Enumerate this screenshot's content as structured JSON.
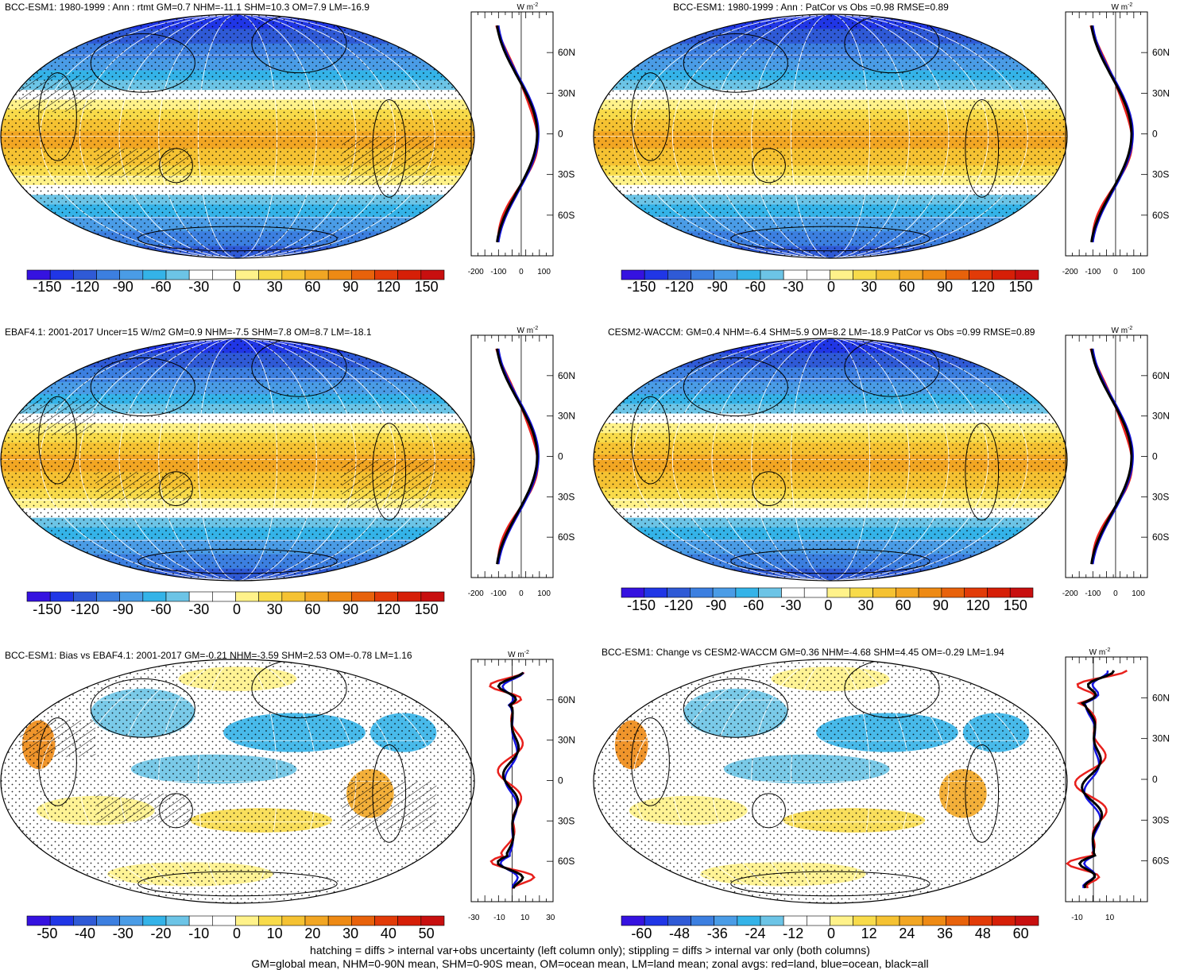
{
  "panels": [
    {
      "title": "BCC-ESM1: 1980-1999 : Ann : rtmt GM=0.7 NHM=-11.1 SHM=10.3 OM=7.9 LM=-16.9",
      "kind": "climatology",
      "colorbar": {
        "labels": [
          "-150",
          "-120",
          "-90",
          "-60",
          "-30",
          "0",
          "30",
          "60",
          "90",
          "120",
          "150"
        ]
      },
      "profile": {
        "x_ticks": [
          "-200",
          "-100",
          "0",
          "100"
        ],
        "x_range": [
          -220,
          140
        ],
        "units": "W m",
        "units_sup": "-2"
      },
      "hatching": true
    },
    {
      "title": "BCC-ESM1: 1980-1999 : Ann : PatCor vs Obs =0.98 RMSE=0.89",
      "kind": "climatology",
      "colorbar": {
        "labels": [
          "-150",
          "-120",
          "-90",
          "-60",
          "-30",
          "0",
          "30",
          "60",
          "90",
          "120",
          "150"
        ]
      },
      "profile": {
        "x_ticks": [
          "-200",
          "-100",
          "0",
          "100"
        ],
        "x_range": [
          -220,
          140
        ],
        "units": "W m",
        "units_sup": "-2"
      },
      "hatching": false
    },
    {
      "title": "EBAF4.1: 2001-2017 Uncer=15 W/m2 GM=0.9 NHM=-7.5 SHM=7.8 OM=8.7 LM=-18.1",
      "kind": "climatology",
      "colorbar": {
        "labels": [
          "-150",
          "-120",
          "-90",
          "-60",
          "-30",
          "0",
          "30",
          "60",
          "90",
          "120",
          "150"
        ]
      },
      "profile": {
        "x_ticks": [
          "-200",
          "-100",
          "0",
          "100"
        ],
        "x_range": [
          -220,
          140
        ],
        "units": "W m",
        "units_sup": "-2"
      },
      "hatching": true
    },
    {
      "title": "CESM2-WACCM: GM=0.4 NHM=-6.4 SHM=5.9 OM=8.2 LM=-18.9 PatCor vs Obs =0.99 RMSE=0.89",
      "kind": "climatology",
      "colorbar": {
        "labels": [
          "-150",
          "-120",
          "-90",
          "-60",
          "-30",
          "0",
          "30",
          "60",
          "90",
          "120",
          "150"
        ]
      },
      "profile": {
        "x_ticks": [
          "-200",
          "-100",
          "0",
          "100"
        ],
        "x_range": [
          -220,
          140
        ],
        "units": "W m",
        "units_sup": "-2"
      },
      "hatching": false
    },
    {
      "title": "BCC-ESM1: Bias vs EBAF4.1: 2001-2017 GM=-0.21 NHM=-3.59 SHM=2.53 OM=-0.78 LM=1.16",
      "kind": "difference",
      "colorbar": {
        "labels": [
          "-50",
          "-40",
          "-30",
          "-20",
          "-10",
          "0",
          "10",
          "20",
          "30",
          "40",
          "50"
        ]
      },
      "profile": {
        "x_ticks": [
          "-30",
          "-10",
          "10",
          "30"
        ],
        "x_range": [
          -32,
          32
        ],
        "units": "W m",
        "units_sup": "-2"
      },
      "hatching": true
    },
    {
      "title": "BCC-ESM1: Change vs CESM2-WACCM GM=0.36 NHM=-4.68 SHM=4.45 OM=-0.29 LM=1.94",
      "kind": "difference",
      "colorbar": {
        "labels": [
          "-60",
          "-48",
          "-36",
          "-24",
          "-12",
          "0",
          "12",
          "24",
          "36",
          "48",
          "60"
        ]
      },
      "profile": {
        "x_ticks": [
          "-10",
          "10"
        ],
        "x_range": [
          -17,
          33
        ],
        "units": "W m",
        "units_sup": "-2"
      },
      "hatching": false
    }
  ],
  "lat_labels": [
    "60N",
    "30N",
    "0",
    "30S",
    "60S"
  ],
  "palette": [
    "#3512e0",
    "#2036e6",
    "#2f5ad6",
    "#3c7fe0",
    "#4a9ce6",
    "#34b3e8",
    "#6cc4e6",
    "#ffffff",
    "#ffffff",
    "#fff28a",
    "#f8db4a",
    "#f5c232",
    "#f2a623",
    "#ee8a14",
    "#e8620b",
    "#e23b08",
    "#d61f07",
    "#c80f0f"
  ],
  "colors": {
    "land": "#e8201c",
    "ocean": "#1414e0",
    "all": "#000000"
  },
  "footer": {
    "line1": "hatching = diffs > internal var+obs uncertainty (left column only); stippling = diffs > internal var only (both columns)",
    "line2": "GM=global mean, NHM=0-90N mean, SHM=0-90S mean, OM=ocean mean, LM=land mean; zonal avgs: red=land, blue=ocean, black=all"
  }
}
